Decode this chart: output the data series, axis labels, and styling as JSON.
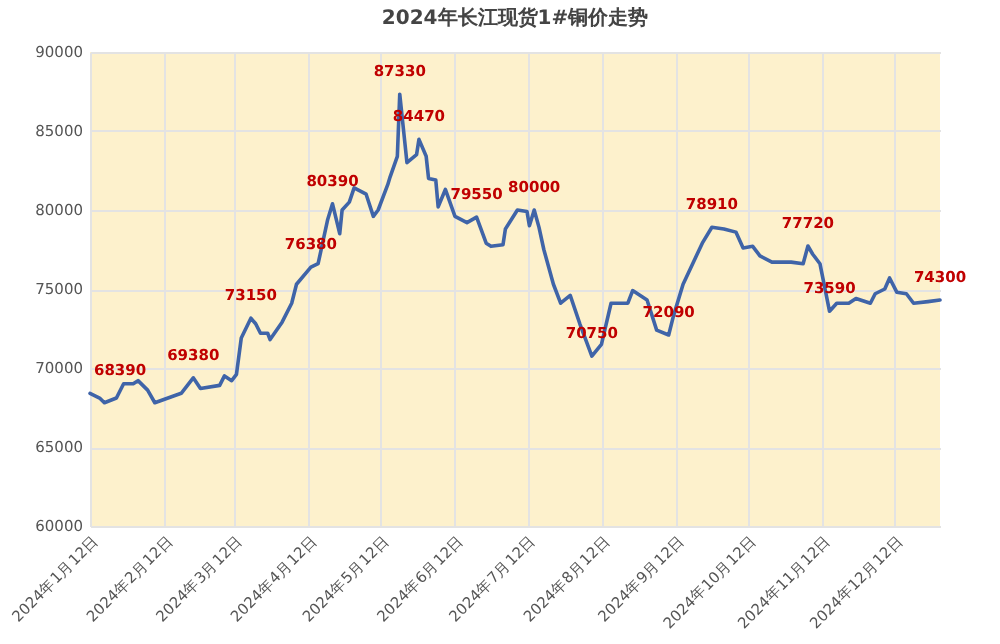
{
  "chart_data": {
    "type": "line",
    "title": "2024年长江现货1#铜价走势",
    "x": [
      "2024-01-12",
      "2024-01-16",
      "2024-01-18",
      "2024-01-23",
      "2024-01-26",
      "2024-01-30",
      "2024-02-01",
      "2024-02-05",
      "2024-02-08",
      "2024-02-19",
      "2024-02-24",
      "2024-02-27",
      "2024-03-06",
      "2024-03-08",
      "2024-03-11",
      "2024-03-13",
      "2024-03-15",
      "2024-03-19",
      "2024-03-21",
      "2024-03-23",
      "2024-03-26",
      "2024-03-27",
      "2024-04-01",
      "2024-04-05",
      "2024-04-07",
      "2024-04-13",
      "2024-04-16",
      "2024-04-20",
      "2024-04-22",
      "2024-04-25",
      "2024-04-26",
      "2024-04-29",
      "2024-05-01",
      "2024-05-06",
      "2024-05-09",
      "2024-05-11",
      "2024-05-15",
      "2024-05-16",
      "2024-05-19",
      "2024-05-20",
      "2024-05-23",
      "2024-05-27",
      "2024-05-28",
      "2024-05-31",
      "2024-06-01",
      "2024-06-04",
      "2024-06-05",
      "2024-06-08",
      "2024-06-12",
      "2024-06-17",
      "2024-06-21",
      "2024-06-25",
      "2024-06-27",
      "2024-07-02",
      "2024-07-03",
      "2024-07-08",
      "2024-07-12",
      "2024-07-13",
      "2024-07-15",
      "2024-07-17",
      "2024-07-19",
      "2024-07-23",
      "2024-07-26",
      "2024-07-30",
      "2024-08-03",
      "2024-08-08",
      "2024-08-12",
      "2024-08-16",
      "2024-08-23",
      "2024-08-25",
      "2024-08-31",
      "2024-09-04",
      "2024-09-09",
      "2024-09-11",
      "2024-09-15",
      "2024-09-19",
      "2024-09-23",
      "2024-09-27",
      "2024-10-02",
      "2024-10-07",
      "2024-10-10",
      "2024-10-14",
      "2024-10-17",
      "2024-10-22",
      "2024-10-30",
      "2024-11-04",
      "2024-11-06",
      "2024-11-08",
      "2024-11-11",
      "2024-11-15",
      "2024-11-18",
      "2024-11-23",
      "2024-11-26",
      "2024-12-02",
      "2024-12-04",
      "2024-12-08",
      "2024-12-10",
      "2024-12-13",
      "2024-12-17",
      "2024-12-20",
      "2024-12-26",
      "2024-12-31"
    ],
    "series": [
      {
        "color": "#3f64a8",
        "values": [
          68390,
          68100,
          67800,
          68100,
          69000,
          69000,
          69200,
          68600,
          67800,
          68400,
          69380,
          68700,
          68900,
          69500,
          69200,
          69600,
          71900,
          73150,
          72800,
          72200,
          72200,
          71800,
          72900,
          74100,
          75300,
          76380,
          76600,
          79400,
          80390,
          78500,
          80000,
          80500,
          81400,
          81000,
          79600,
          80000,
          81600,
          82100,
          83400,
          87330,
          83000,
          83500,
          84470,
          83400,
          82000,
          81900,
          80200,
          81300,
          79600,
          79200,
          79550,
          77900,
          77700,
          77800,
          78800,
          80000,
          79900,
          79000,
          80000,
          78900,
          77500,
          75300,
          74100,
          74600,
          72800,
          70750,
          71500,
          74100,
          74100,
          74900,
          74300,
          72400,
          72090,
          73300,
          75300,
          76600,
          77900,
          78910,
          78800,
          78600,
          77600,
          77700,
          77100,
          76700,
          76700,
          76600,
          77720,
          77200,
          76600,
          73590,
          74100,
          74100,
          74400,
          74100,
          74700,
          75000,
          75700,
          74800,
          74700,
          74100,
          74200,
          74300
        ],
        "value_labels": [
          "68390",
          null,
          null,
          null,
          null,
          null,
          null,
          null,
          null,
          null,
          "69380",
          null,
          null,
          null,
          null,
          null,
          null,
          "73150",
          null,
          null,
          null,
          null,
          null,
          null,
          null,
          "76380",
          null,
          null,
          "80390",
          null,
          null,
          null,
          null,
          null,
          null,
          null,
          null,
          null,
          null,
          "87330",
          null,
          null,
          "84470",
          null,
          null,
          null,
          null,
          null,
          null,
          null,
          "79550",
          null,
          null,
          null,
          null,
          null,
          null,
          null,
          "80000",
          null,
          null,
          null,
          null,
          null,
          null,
          "70750",
          null,
          null,
          null,
          null,
          null,
          null,
          "72090",
          null,
          null,
          null,
          null,
          "78910",
          null,
          null,
          null,
          null,
          null,
          null,
          null,
          null,
          "77720",
          null,
          null,
          "73590",
          null,
          null,
          null,
          null,
          null,
          null,
          null,
          null,
          null,
          null,
          null,
          "74300"
        ]
      }
    ],
    "xlim": [
      "2024-01-12",
      "2024-12-31"
    ],
    "xticks": [
      {
        "value": "2024-01-12",
        "label": "2024年1月12日"
      },
      {
        "value": "2024-02-12",
        "label": "2024年2月12日"
      },
      {
        "value": "2024-03-12",
        "label": "2024年3月12日"
      },
      {
        "value": "2024-04-12",
        "label": "2024年4月12日"
      },
      {
        "value": "2024-05-12",
        "label": "2024年5月12日"
      },
      {
        "value": "2024-06-12",
        "label": "2024年6月12日"
      },
      {
        "value": "2024-07-12",
        "label": "2024年7月12日"
      },
      {
        "value": "2024-08-12",
        "label": "2024年8月12日"
      },
      {
        "value": "2024-09-12",
        "label": "2024年9月12日"
      },
      {
        "value": "2024-10-12",
        "label": "2024年10月12日"
      },
      {
        "value": "2024-11-12",
        "label": "2024年11月12日"
      },
      {
        "value": "2024-12-12",
        "label": "2024年12月12日"
      }
    ],
    "ylim": [
      60000,
      90000
    ],
    "yticks": [
      60000,
      65000,
      70000,
      75000,
      80000,
      85000,
      90000
    ],
    "grid": true,
    "marker": "none",
    "line_style": "solid"
  }
}
